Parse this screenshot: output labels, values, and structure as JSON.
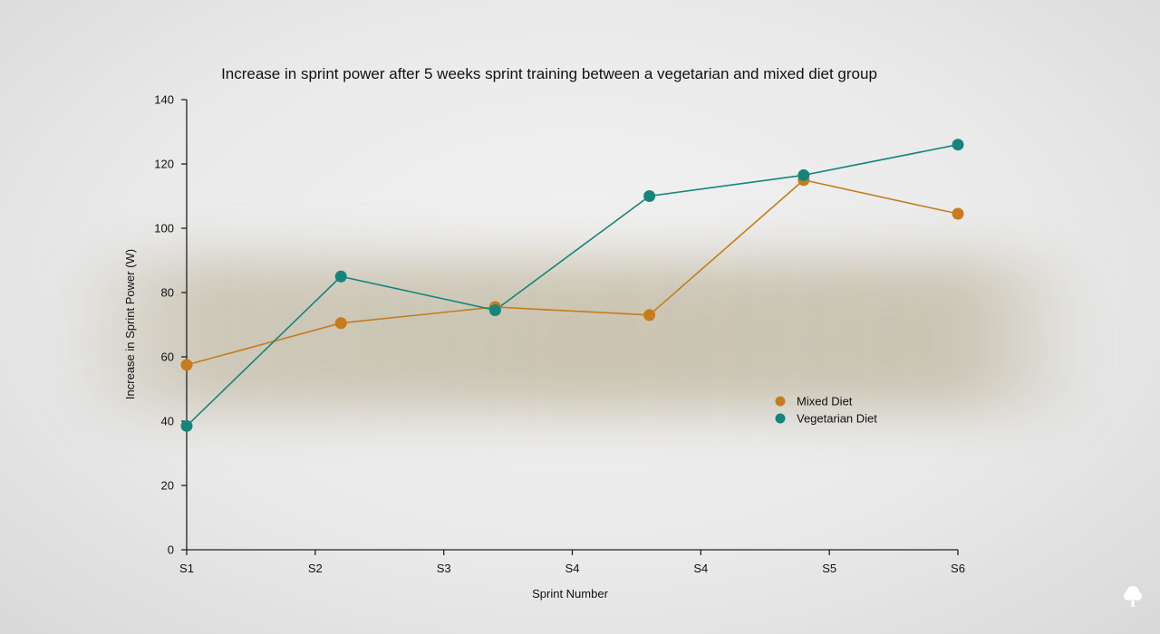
{
  "chart_data": {
    "type": "line",
    "title": "Increase in sprint power after 5 weeks sprint training between a vegetarian and mixed diet group",
    "xlabel": "Sprint Number",
    "ylabel": "Increase in Sprint Power (W)",
    "categories": [
      "S1",
      "S2",
      "S3",
      "S4",
      "S4",
      "S5",
      "S6"
    ],
    "ylim": [
      0,
      140
    ],
    "yticks": [
      "0",
      "20",
      "40",
      "60",
      "80",
      "100",
      "120",
      "140"
    ],
    "grid": false,
    "legend_position": "right",
    "series": [
      {
        "name": "Mixed Diet",
        "color": "#c67c1d",
        "points": [
          {
            "x": 0,
            "y": 57.5
          },
          {
            "x": 1.2,
            "y": 70.5
          },
          {
            "x": 2.4,
            "y": 75.5
          },
          {
            "x": 3.6,
            "y": 73
          },
          {
            "x": 4.8,
            "y": 115
          },
          {
            "x": 6.0,
            "y": 104.5
          }
        ]
      },
      {
        "name": "Vegetarian Diet",
        "color": "#15857c",
        "points": [
          {
            "x": 0,
            "y": 38.5
          },
          {
            "x": 1.2,
            "y": 85
          },
          {
            "x": 2.4,
            "y": 74.5
          },
          {
            "x": 3.6,
            "y": 110
          },
          {
            "x": 4.8,
            "y": 116.5
          },
          {
            "x": 6.0,
            "y": 126
          }
        ]
      }
    ]
  },
  "logo": {
    "name": "tree-logo",
    "color": "#ffffff"
  }
}
